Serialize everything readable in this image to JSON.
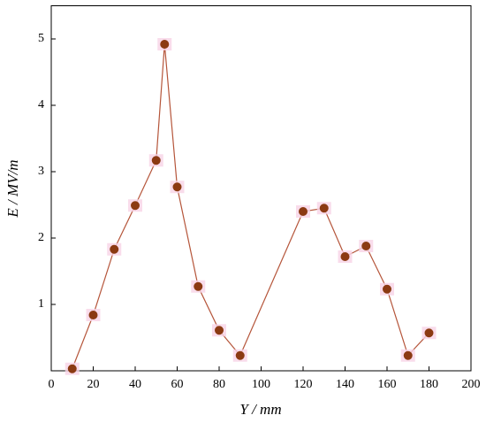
{
  "chart_data": {
    "type": "line",
    "x_label": "Y / mm",
    "y_label": "E / MV/m",
    "x": [
      10,
      20,
      30,
      40,
      50,
      54,
      60,
      70,
      80,
      90,
      120,
      130,
      140,
      150,
      160,
      170,
      180
    ],
    "series": [
      {
        "color": "#b5553a",
        "marker_color": "#8b3a12",
        "values": [
          0.03,
          0.84,
          1.83,
          2.49,
          3.17,
          4.92,
          2.77,
          1.27,
          0.61,
          0.23,
          2.4,
          2.45,
          1.72,
          1.88,
          1.23,
          0.23,
          0.57
        ]
      }
    ],
    "xlim": [
      0,
      200
    ],
    "xticks": [
      0,
      20,
      40,
      60,
      80,
      100,
      120,
      140,
      160,
      180,
      200
    ],
    "ylim": [
      0,
      5.5
    ],
    "yticks": [
      1,
      2,
      3,
      4,
      5
    ]
  }
}
